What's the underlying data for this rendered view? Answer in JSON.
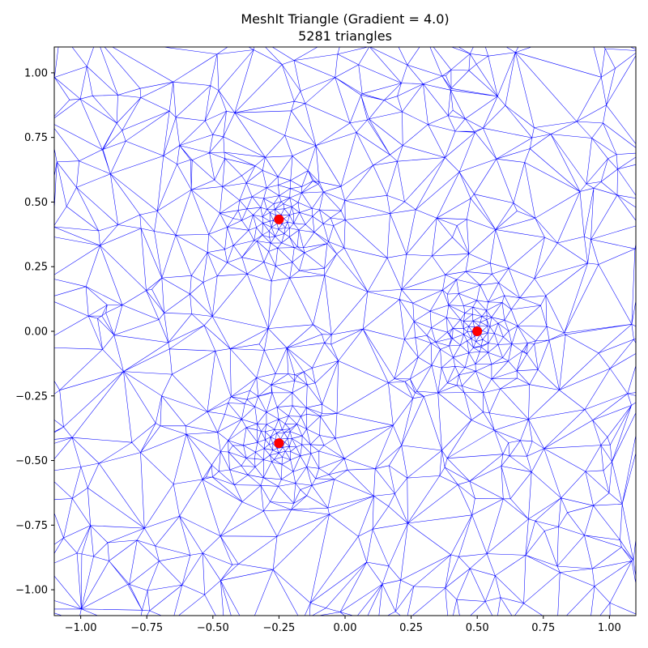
{
  "chart_data": {
    "type": "scatter",
    "title": "MeshIt Triangle (Gradient = 4.0)",
    "subtitle": "5281 triangles",
    "xlabel": "",
    "ylabel": "",
    "xlim": [
      -1.1,
      1.1
    ],
    "ylim": [
      -1.1,
      1.1
    ],
    "xticks": [
      -1.0,
      -0.75,
      -0.5,
      -0.25,
      0.0,
      0.25,
      0.5,
      0.75,
      1.0
    ],
    "xtick_labels": [
      "−1.00",
      "−0.75",
      "−0.50",
      "−0.25",
      "0.00",
      "0.25",
      "0.50",
      "0.75",
      "1.00"
    ],
    "yticks": [
      1.0,
      0.75,
      0.5,
      0.25,
      0.0,
      -0.25,
      -0.5,
      -0.75,
      -1.0
    ],
    "ytick_labels": [
      "1.00",
      "0.75",
      "0.50",
      "0.25",
      "0.00",
      "−0.25",
      "−0.50",
      "−0.75",
      "−1.00"
    ],
    "grid": false,
    "mesh_color": "#0000ff",
    "point_color": "#ff0000",
    "points": [
      {
        "x": -0.25,
        "y": 0.433
      },
      {
        "x": 0.5,
        "y": 0.0
      },
      {
        "x": -0.25,
        "y": -0.433
      }
    ]
  }
}
